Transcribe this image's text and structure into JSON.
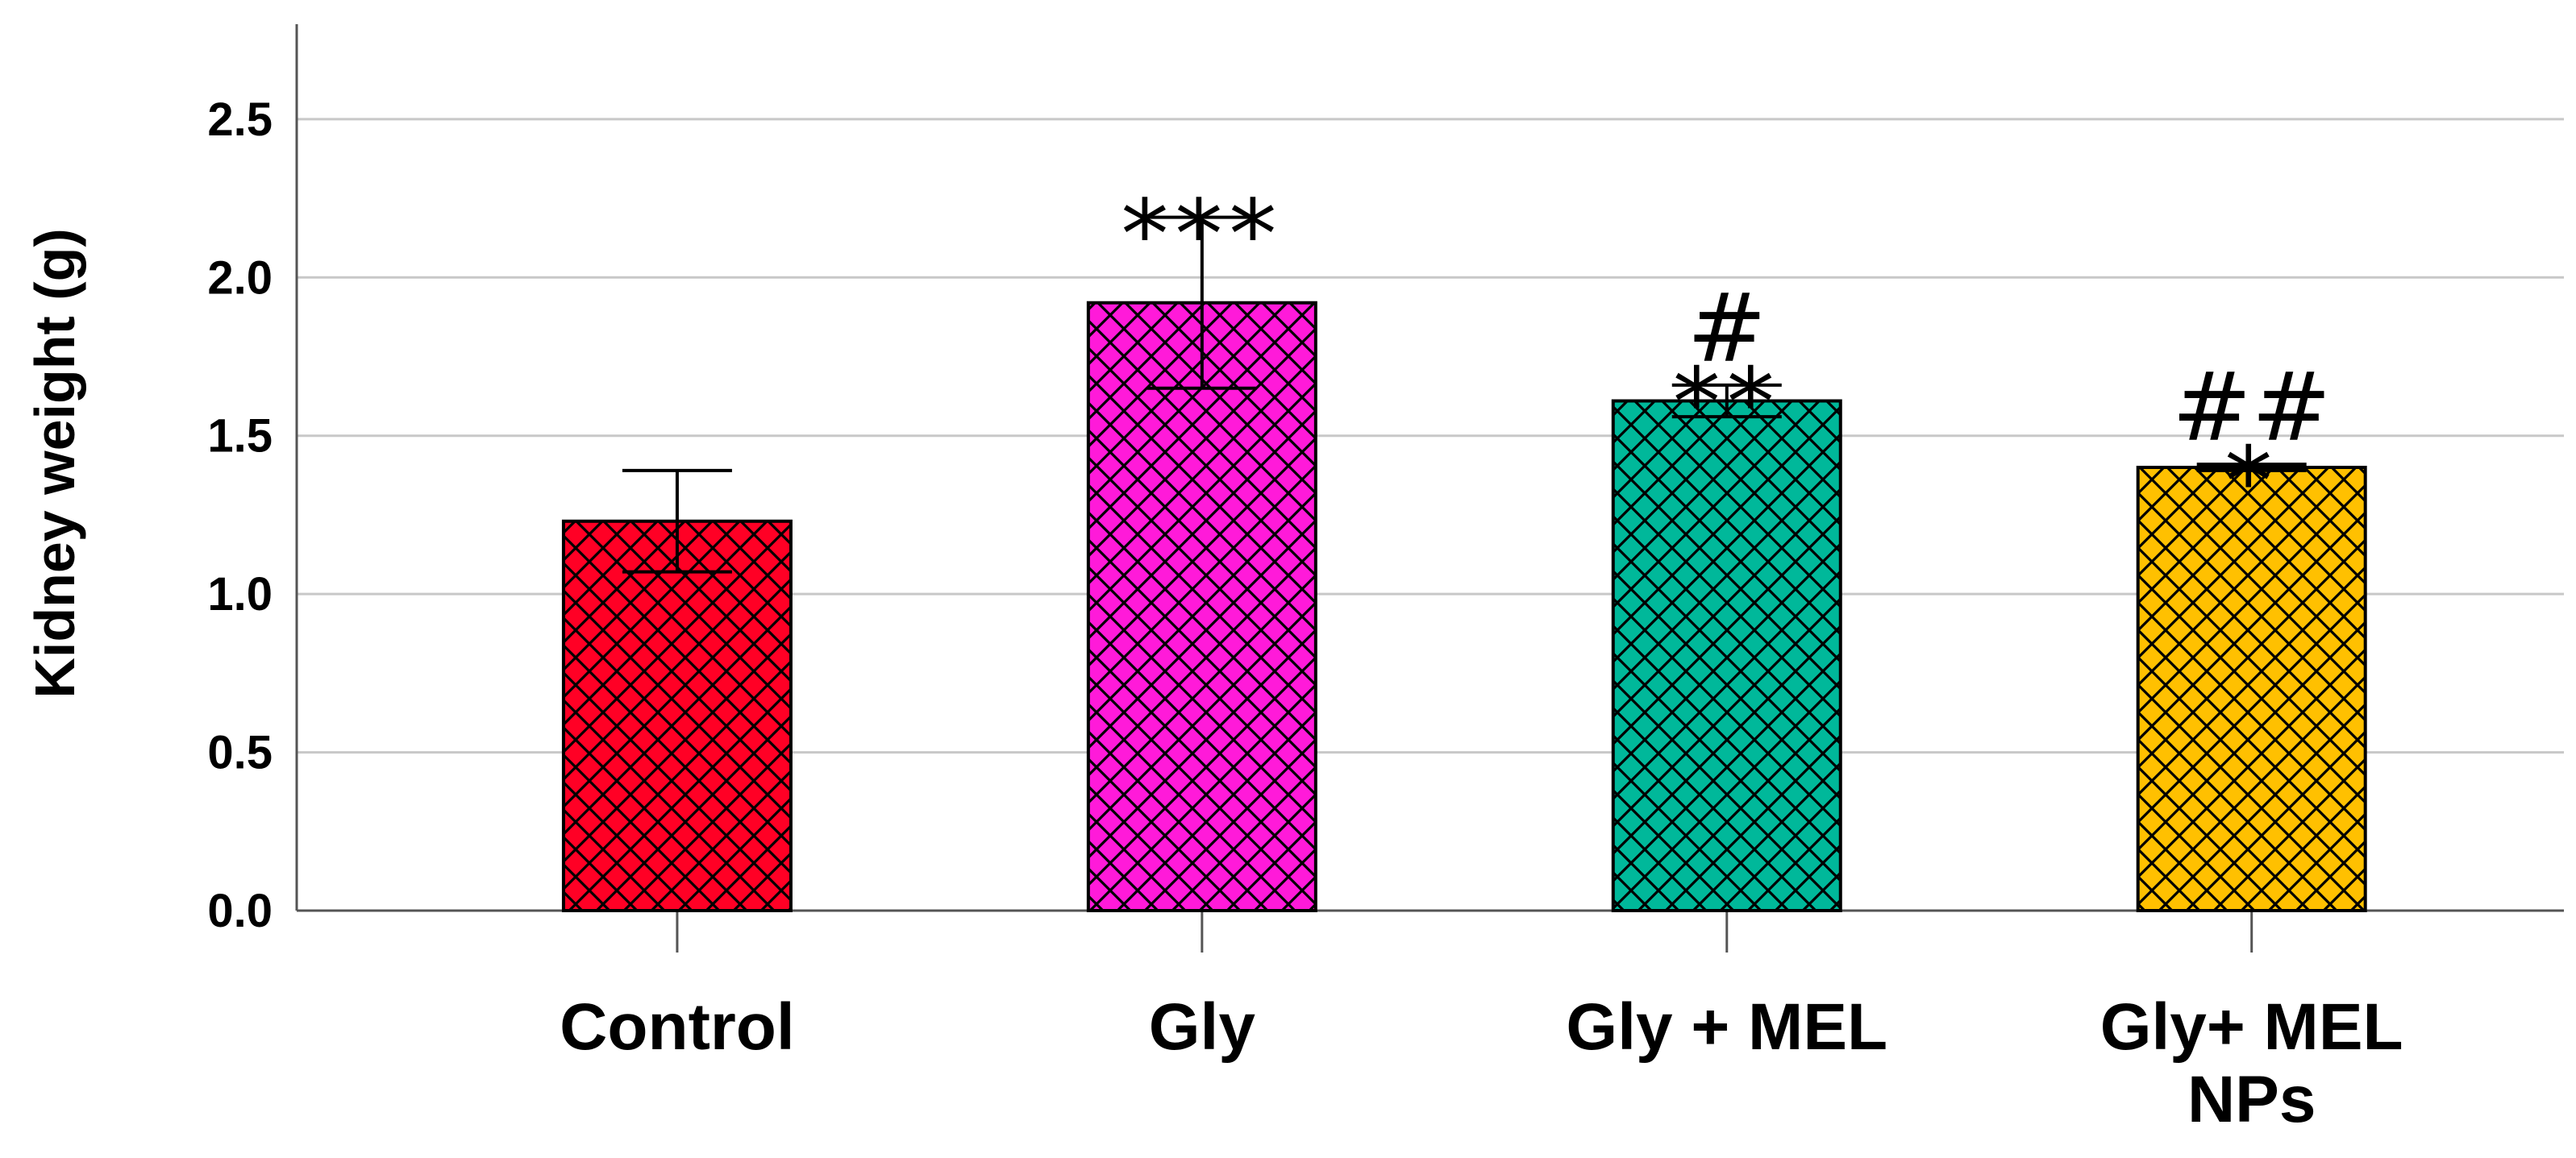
{
  "chart_data": {
    "type": "bar",
    "title": "",
    "xlabel": "",
    "ylabel": "Kidney weight (g)",
    "ylim": [
      0,
      2.8
    ],
    "yticks": [
      "0.0",
      "0.5",
      "1.0",
      "1.5",
      "2.0",
      "2.5"
    ],
    "grid": "horizontal",
    "categories": [
      {
        "lines": [
          "Control"
        ]
      },
      {
        "lines": [
          "Gly"
        ]
      },
      {
        "lines": [
          "Gly + MEL"
        ]
      },
      {
        "lines": [
          "Gly+ MEL",
          "NPs"
        ]
      }
    ],
    "values": [
      1.23,
      1.92,
      1.61,
      1.4
    ],
    "errors": [
      0.16,
      0.27,
      0.05,
      0.01
    ],
    "colors": [
      "#ff0025",
      "#ff1ad9",
      "#00b89a",
      "#ffc000"
    ],
    "pattern": "crosshatch",
    "significance": [
      [
        "***"
      ],
      [
        "#",
        "**"
      ],
      [
        "##",
        "*"
      ]
    ],
    "significance_bar_index": [
      1,
      2,
      3
    ]
  }
}
